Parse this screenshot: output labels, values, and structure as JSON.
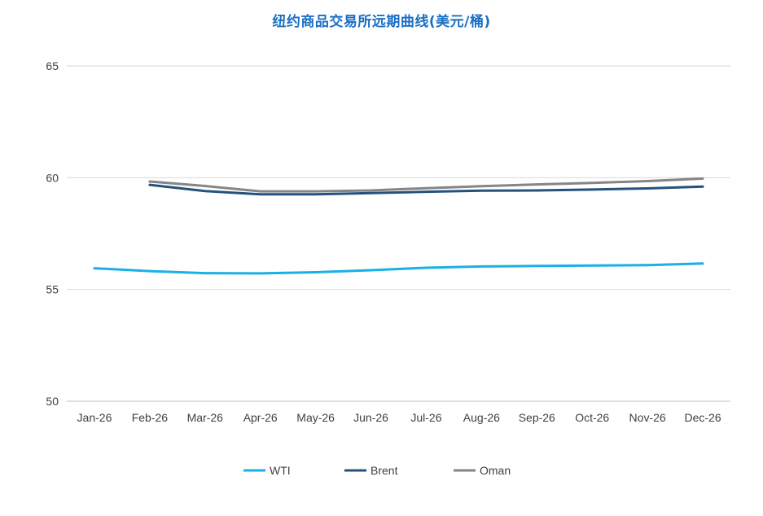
{
  "chart_data": {
    "type": "line",
    "title": "纽约商品交易所远期曲线(美元/桶)",
    "xlabel": "",
    "ylabel": "",
    "categories": [
      "Jan-26",
      "Feb-26",
      "Mar-26",
      "Apr-26",
      "May-26",
      "Jun-26",
      "Jul-26",
      "Aug-26",
      "Sep-26",
      "Oct-26",
      "Nov-26",
      "Dec-26"
    ],
    "ylim": [
      50,
      65
    ],
    "yticks": [
      50,
      55,
      60,
      65
    ],
    "grid": true,
    "legend_position": "bottom",
    "series": [
      {
        "name": "WTI",
        "color": "#19b0e6",
        "values": [
          55.95,
          55.82,
          55.73,
          55.72,
          55.77,
          55.86,
          55.97,
          56.03,
          56.05,
          56.07,
          56.09,
          56.16
        ]
      },
      {
        "name": "Brent",
        "color": "#23527f",
        "values": [
          null,
          59.68,
          59.4,
          59.26,
          59.26,
          59.31,
          59.37,
          59.42,
          59.43,
          59.47,
          59.52,
          59.6
        ]
      },
      {
        "name": "Oman",
        "color": "#858585",
        "values": [
          null,
          59.83,
          59.63,
          59.39,
          59.39,
          59.43,
          59.53,
          59.62,
          59.7,
          59.77,
          59.85,
          59.96
        ]
      }
    ]
  }
}
